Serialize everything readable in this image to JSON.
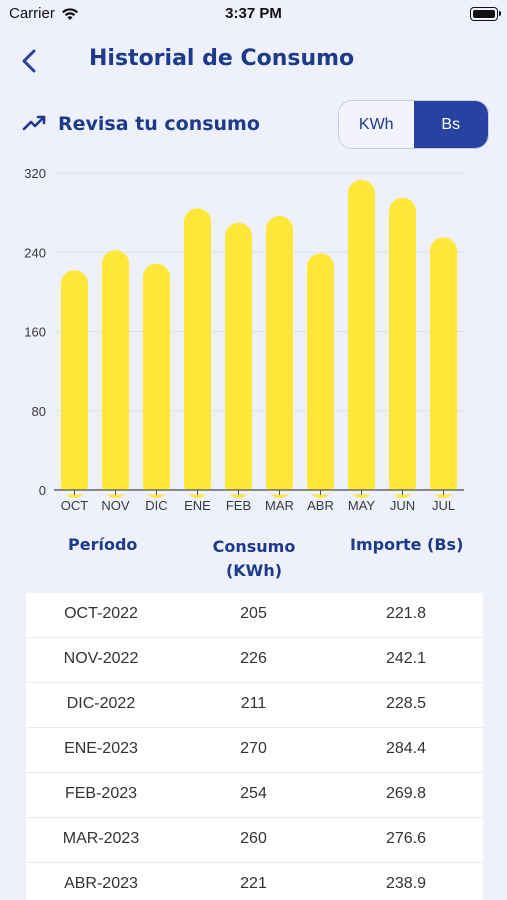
{
  "status_bar": {
    "carrier": "Carrier",
    "time": "3:37 PM"
  },
  "header": {
    "title": "Historial de Consumo",
    "back_icon": "chevron-left-icon"
  },
  "subheader": {
    "title": "Revisa tu consumo",
    "icon": "trending-up-icon",
    "toggle": {
      "options": [
        "KWh",
        "Bs"
      ],
      "selected": "Bs"
    }
  },
  "colors": {
    "accent": "#2742a0",
    "title": "#1e3a8a",
    "bar": "#fde83a",
    "background": "#eef0fb"
  },
  "chart_data": {
    "type": "bar",
    "categories": [
      "OCT",
      "NOV",
      "DIC",
      "ENE",
      "FEB",
      "MAR",
      "ABR",
      "MAY",
      "JUN",
      "JUL"
    ],
    "values": [
      221.8,
      242.1,
      228.5,
      284.4,
      269.8,
      276.6,
      238.9,
      313,
      295,
      255
    ],
    "yticks": [
      "0",
      "80",
      "160",
      "240",
      "320"
    ],
    "ylim": [
      0,
      320
    ],
    "grid": true
  },
  "table": {
    "headers": {
      "periodo": "Período",
      "consumo": "Consumo (KWh)",
      "importe": "Importe (Bs)"
    },
    "rows": [
      {
        "periodo": "OCT-2022",
        "consumo": "205",
        "importe": "221.8"
      },
      {
        "periodo": "NOV-2022",
        "consumo": "226",
        "importe": "242.1"
      },
      {
        "periodo": "DIC-2022",
        "consumo": "211",
        "importe": "228.5"
      },
      {
        "periodo": "ENE-2023",
        "consumo": "270",
        "importe": "284.4"
      },
      {
        "periodo": "FEB-2023",
        "consumo": "254",
        "importe": "269.8"
      },
      {
        "periodo": "MAR-2023",
        "consumo": "260",
        "importe": "276.6"
      },
      {
        "periodo": "ABR-2023",
        "consumo": "221",
        "importe": "238.9"
      }
    ]
  }
}
